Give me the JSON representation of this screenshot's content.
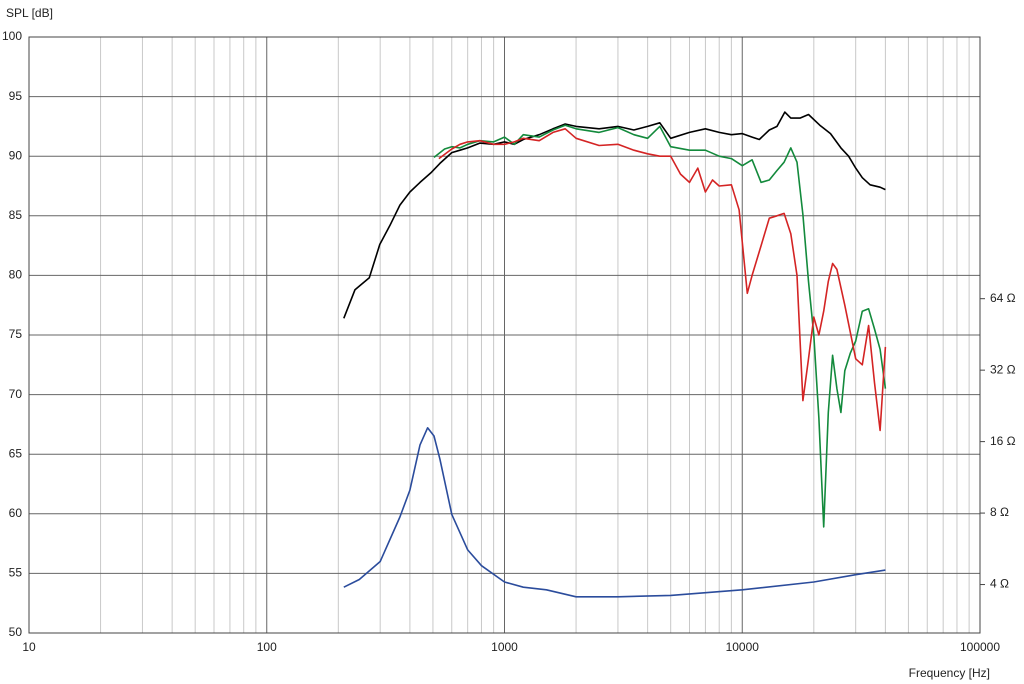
{
  "chart_data": {
    "type": "line",
    "ylabel": "SPL [dB]",
    "xlabel": "Frequency [Hz]",
    "xscale": "log",
    "xlim": [
      10,
      100000
    ],
    "xticks": [
      10,
      100,
      1000,
      10000,
      100000
    ],
    "ylim": [
      50,
      100
    ],
    "yticks": [
      50,
      55,
      60,
      65,
      70,
      75,
      80,
      85,
      90,
      95,
      100
    ],
    "y2scale": "log",
    "y2lim": [
      2.5,
      810
    ],
    "y2ticks": [
      {
        "value": 4,
        "label": "4 Ω"
      },
      {
        "value": 8,
        "label": "8 Ω"
      },
      {
        "value": 16,
        "label": "16 Ω"
      },
      {
        "value": 32,
        "label": "32 Ω"
      },
      {
        "value": 64,
        "label": "64 Ω"
      }
    ],
    "grid": true,
    "series": [
      {
        "color": "#000000",
        "x": [
          211,
          235,
          245,
          270,
          299,
          330,
          363,
          400,
          441,
          490,
          535,
          600,
          650,
          700,
          787,
          900,
          1000,
          1100,
          1200,
          1400,
          1600,
          1800,
          2000,
          2500,
          3000,
          3500,
          4000,
          4500,
          5000,
          6000,
          7000,
          8000,
          9000,
          10000,
          11000,
          11800,
          13000,
          14000,
          15100,
          16000,
          17500,
          19000,
          21200,
          23500,
          26000,
          28000,
          30000,
          32000,
          34500,
          38000,
          40000
        ],
        "values": [
          76.4,
          78.8,
          79.1,
          79.8,
          82.6,
          84.2,
          85.9,
          87.0,
          87.8,
          88.6,
          89.4,
          90.3,
          90.5,
          90.7,
          91.1,
          91.0,
          91.2,
          91.0,
          91.4,
          91.8,
          92.3,
          92.7,
          92.5,
          92.3,
          92.5,
          92.2,
          92.5,
          92.8,
          91.5,
          92.0,
          92.3,
          92.0,
          91.8,
          91.9,
          91.6,
          91.4,
          92.2,
          92.5,
          93.7,
          93.2,
          93.2,
          93.5,
          92.6,
          91.9,
          90.7,
          90.0,
          89.0,
          88.2,
          87.6,
          87.4,
          87.2
        ]
      },
      {
        "color": "#138a3c",
        "x": [
          505,
          560,
          600,
          650,
          700,
          787,
          900,
          1000,
          1100,
          1200,
          1400,
          1600,
          1800,
          2000,
          2500,
          3000,
          3500,
          4000,
          4500,
          5000,
          6000,
          7000,
          8000,
          9000,
          10000,
          11000,
          12000,
          13000,
          14000,
          15000,
          16000,
          17000,
          18000,
          19000,
          20000,
          21000,
          22000,
          23000,
          24000,
          25000,
          26000,
          27000,
          28500,
          30000,
          32000,
          34000,
          36000,
          38000,
          40000
        ],
        "values": [
          89.9,
          90.6,
          90.8,
          90.7,
          91.0,
          91.3,
          91.2,
          91.6,
          91.0,
          91.8,
          91.6,
          92.2,
          92.6,
          92.3,
          92.0,
          92.4,
          91.8,
          91.5,
          92.5,
          90.8,
          90.5,
          90.5,
          90.0,
          89.8,
          89.2,
          89.7,
          87.8,
          88.0,
          88.8,
          89.5,
          90.7,
          89.5,
          85.1,
          79.5,
          75.0,
          68.0,
          58.9,
          68.5,
          73.3,
          70.5,
          68.5,
          72.0,
          73.5,
          74.5,
          77.0,
          77.2,
          75.5,
          73.8,
          70.5
        ]
      },
      {
        "color": "#d42424",
        "x": [
          530,
          600,
          650,
          700,
          787,
          900,
          1000,
          1100,
          1200,
          1400,
          1600,
          1800,
          2000,
          2500,
          3000,
          3500,
          4000,
          4500,
          5000,
          5500,
          6000,
          6500,
          7000,
          7500,
          8000,
          9000,
          9700,
          10500,
          11000,
          12000,
          13000,
          14000,
          15000,
          16000,
          17000,
          18000,
          19000,
          20000,
          21000,
          22000,
          23000,
          24000,
          25000,
          27000,
          30000,
          32000,
          34000,
          36000,
          38000,
          40000
        ],
        "values": [
          89.8,
          90.6,
          91.0,
          91.2,
          91.3,
          91.0,
          91.0,
          91.2,
          91.5,
          91.3,
          92.0,
          92.3,
          91.5,
          90.9,
          91.0,
          90.5,
          90.2,
          90.0,
          90.0,
          88.5,
          87.8,
          89.0,
          87.0,
          88.0,
          87.5,
          87.6,
          85.5,
          78.5,
          80.0,
          82.5,
          84.8,
          85.0,
          85.2,
          83.5,
          80.0,
          69.5,
          73.0,
          76.5,
          75.0,
          77.0,
          79.5,
          81.0,
          80.5,
          77.5,
          73.0,
          72.5,
          75.8,
          71.0,
          67.0,
          74.0
        ]
      },
      {
        "color": "#2b4c9c",
        "axis": "y2",
        "x": [
          211,
          245,
          300,
          363,
          400,
          441,
          475,
          505,
          535,
          600,
          700,
          800,
          1000,
          1200,
          1500,
          2000,
          3000,
          5000,
          10000,
          20000,
          30000,
          40000
        ],
        "values": [
          3.9,
          4.2,
          5.0,
          7.7,
          10.0,
          15.5,
          18.3,
          16.9,
          13.5,
          7.9,
          5.6,
          4.8,
          4.1,
          3.9,
          3.8,
          3.55,
          3.55,
          3.6,
          3.8,
          4.1,
          4.4,
          4.6
        ]
      }
    ]
  }
}
